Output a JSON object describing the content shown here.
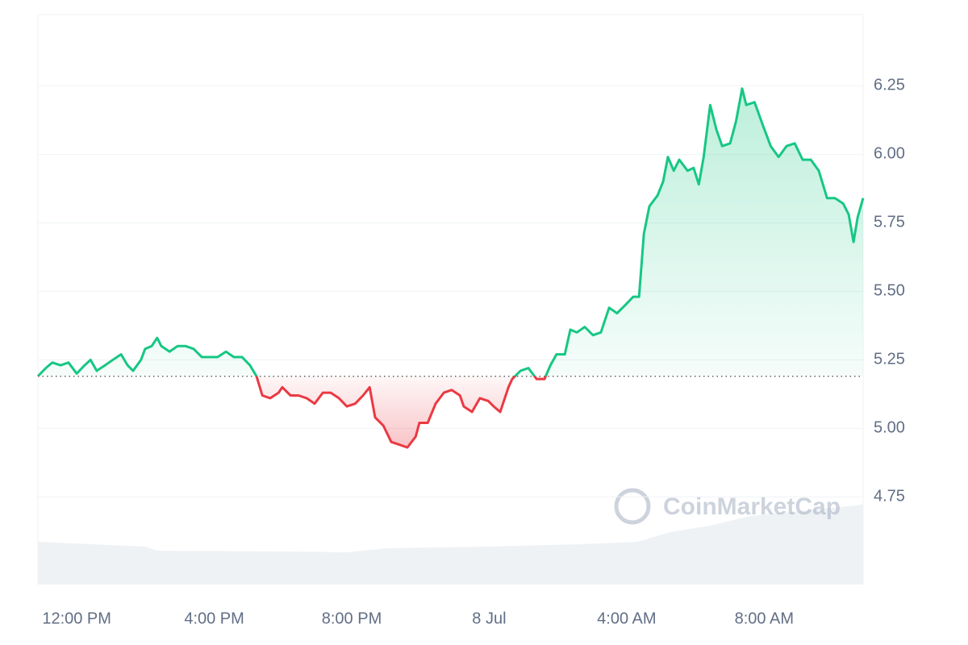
{
  "chart_data": {
    "type": "line",
    "watermark": "CoinMarketCap",
    "baseline": 5.19,
    "xlim": [
      10.87,
      34.88
    ],
    "ylim": [
      4.43,
      6.51
    ],
    "xticks": [
      {
        "value": 12,
        "label": "12:00 PM"
      },
      {
        "value": 16,
        "label": "4:00 PM"
      },
      {
        "value": 20,
        "label": "8:00 PM"
      },
      {
        "value": 24,
        "label": "8 Jul"
      },
      {
        "value": 28,
        "label": "4:00 AM"
      },
      {
        "value": 32,
        "label": "8:00 AM"
      }
    ],
    "yticks": [
      4.75,
      {
        "value": 5.0,
        "label": "5.00"
      },
      5.25,
      {
        "value": 5.5,
        "label": "5.50"
      },
      5.75,
      {
        "value": 6.0,
        "label": "6.00"
      },
      6.25
    ],
    "grid": true,
    "colors": {
      "up": "#16c784",
      "down": "#ea3943"
    },
    "x": [
      10.87,
      11.1,
      11.29,
      11.53,
      11.76,
      12.0,
      12.23,
      12.4,
      12.58,
      12.82,
      13.05,
      13.29,
      13.48,
      13.64,
      13.87,
      13.99,
      14.18,
      14.34,
      14.46,
      14.7,
      14.93,
      15.17,
      15.4,
      15.64,
      15.87,
      16.1,
      16.34,
      16.57,
      16.81,
      17.04,
      17.23,
      17.4,
      17.63,
      17.87,
      17.98,
      18.22,
      18.45,
      18.69,
      18.92,
      19.16,
      19.39,
      19.63,
      19.86,
      20.1,
      20.33,
      20.52,
      20.68,
      20.92,
      21.15,
      21.39,
      21.62,
      21.86,
      21.97,
      22.21,
      22.44,
      22.68,
      22.91,
      23.15,
      23.26,
      23.5,
      23.73,
      23.97,
      24.13,
      24.32,
      24.56,
      24.67,
      24.91,
      25.14,
      25.38,
      25.61,
      25.78,
      25.96,
      26.2,
      26.36,
      26.55,
      26.78,
      27.02,
      27.25,
      27.49,
      27.72,
      27.96,
      28.19,
      28.36,
      28.5,
      28.66,
      28.9,
      29.06,
      29.2,
      29.37,
      29.53,
      29.77,
      29.95,
      30.1,
      30.24,
      30.43,
      30.61,
      30.78,
      31.01,
      31.18,
      31.36,
      31.48,
      31.72,
      31.95,
      32.19,
      32.42,
      32.65,
      32.89,
      33.12,
      33.36,
      33.59,
      33.83,
      34.06,
      34.3,
      34.46,
      34.6,
      34.72,
      34.88
    ],
    "values": [
      5.19,
      5.22,
      5.24,
      5.23,
      5.24,
      5.2,
      5.23,
      5.25,
      5.21,
      5.23,
      5.25,
      5.27,
      5.23,
      5.21,
      5.25,
      5.29,
      5.3,
      5.33,
      5.3,
      5.28,
      5.3,
      5.3,
      5.29,
      5.26,
      5.26,
      5.26,
      5.28,
      5.26,
      5.26,
      5.23,
      5.19,
      5.12,
      5.11,
      5.13,
      5.15,
      5.12,
      5.12,
      5.11,
      5.09,
      5.13,
      5.13,
      5.11,
      5.08,
      5.09,
      5.12,
      5.15,
      5.04,
      5.01,
      4.95,
      4.94,
      4.93,
      4.97,
      5.02,
      5.02,
      5.09,
      5.13,
      5.14,
      5.12,
      5.08,
      5.06,
      5.11,
      5.1,
      5.08,
      5.06,
      5.15,
      5.18,
      5.21,
      5.22,
      5.18,
      5.18,
      5.23,
      5.27,
      5.27,
      5.36,
      5.35,
      5.37,
      5.34,
      5.35,
      5.44,
      5.42,
      5.45,
      5.48,
      5.48,
      5.71,
      5.81,
      5.85,
      5.9,
      5.99,
      5.94,
      5.98,
      5.94,
      5.95,
      5.89,
      5.99,
      6.18,
      6.09,
      6.03,
      6.04,
      6.12,
      6.24,
      6.18,
      6.19,
      6.11,
      6.03,
      5.99,
      6.03,
      6.04,
      5.98,
      5.98,
      5.94,
      5.84,
      5.84,
      5.82,
      5.78,
      5.68,
      5.77,
      5.84
    ]
  }
}
